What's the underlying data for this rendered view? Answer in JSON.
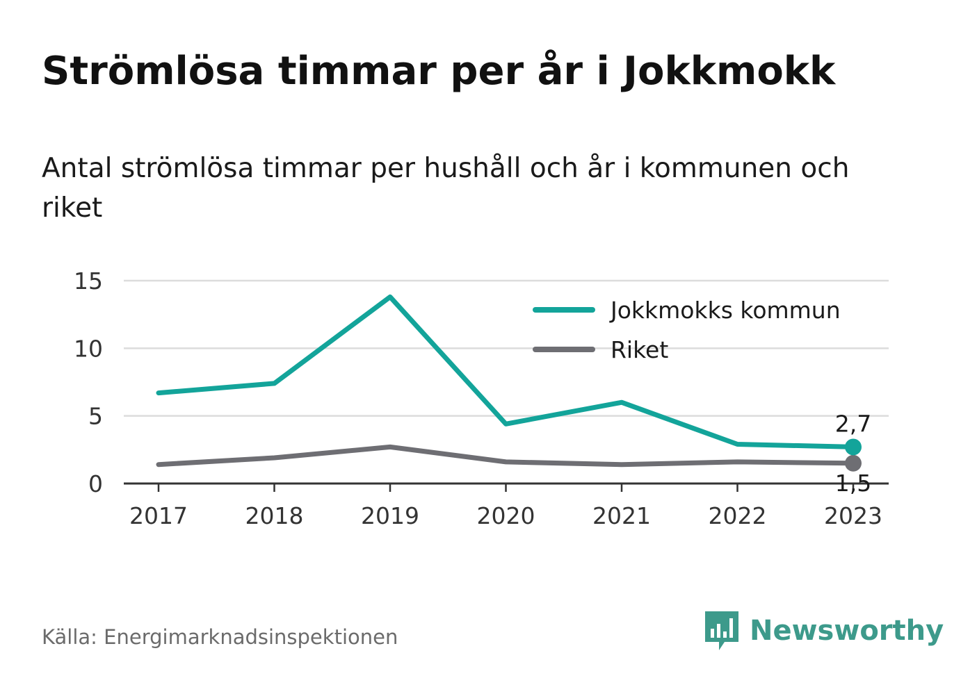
{
  "title": "Strömlösa timmar per år i Jokkmokk",
  "subtitle": "Antal strömlösa timmar per hushåll och år i kommunen och riket",
  "source": "Källa: Energimarknadsinspektionen",
  "brand": {
    "name": "Newsworthy",
    "color": "#3d9a8b",
    "icon": "newsworthy-logo-icon"
  },
  "chart_data": {
    "type": "line",
    "x": [
      2017,
      2018,
      2019,
      2020,
      2021,
      2022,
      2023
    ],
    "x_tick_labels": [
      "2017",
      "2018",
      "2019",
      "2020",
      "2021",
      "2022",
      "2023"
    ],
    "ylim": [
      0,
      15
    ],
    "yticks": [
      0,
      5,
      10,
      15
    ],
    "y_tick_labels": [
      "0",
      "5",
      "10",
      "15"
    ],
    "grid": true,
    "legend_position": "top-right",
    "series": [
      {
        "name": "Jokkmokks kommun",
        "color": "#13a49a",
        "values": [
          6.7,
          7.4,
          13.8,
          4.4,
          6.0,
          2.9,
          2.7
        ],
        "end_label": "2,7"
      },
      {
        "name": "Riket",
        "color": "#6e6e73",
        "values": [
          1.4,
          1.9,
          2.7,
          1.6,
          1.4,
          1.6,
          1.5
        ],
        "end_label": "1,5"
      }
    ]
  }
}
